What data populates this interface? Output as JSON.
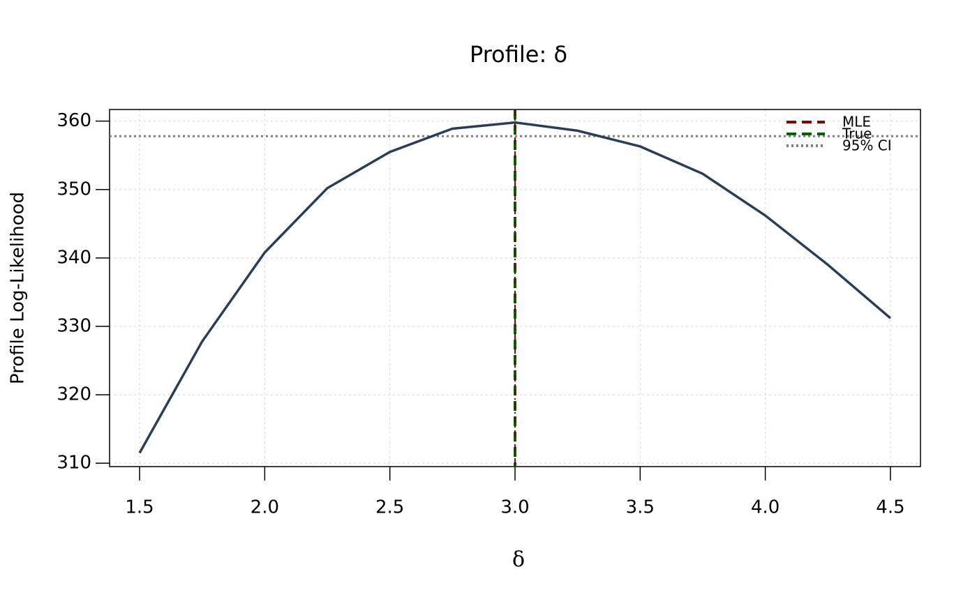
{
  "chart_data": {
    "type": "line",
    "title": "Profile: δ",
    "xlabel": "δ",
    "ylabel": "Profile Log-Likelihood",
    "x": [
      1.5,
      1.75,
      2.0,
      2.25,
      2.5,
      2.75,
      3.0,
      3.25,
      3.5,
      3.75,
      4.0,
      4.25,
      4.5
    ],
    "values": [
      311.5,
      327.8,
      340.8,
      350.2,
      355.5,
      358.9,
      359.8,
      358.6,
      356.3,
      352.3,
      346.2,
      339.0,
      331.2
    ],
    "color": "#2c3e56",
    "xlim": [
      1.38,
      4.62
    ],
    "ylim": [
      309.5,
      361.7
    ],
    "xticks": [
      1.5,
      {
        "value": 2,
        "label": "2.0"
      },
      2.5,
      {
        "value": 3,
        "label": "3.0"
      },
      3.5,
      {
        "value": 4,
        "label": "4.0"
      },
      4.5
    ],
    "yticks": [
      310,
      320,
      330,
      340,
      350,
      360
    ],
    "grid": true,
    "mle": {
      "name": "MLE",
      "value": 3,
      "color": "#8b0000"
    },
    "true_value": {
      "name": "True",
      "value": 3,
      "color": "#006400"
    },
    "ci": {
      "name": "95% CI",
      "value": 357.8,
      "color": "#808080"
    },
    "legend": "top-right"
  }
}
